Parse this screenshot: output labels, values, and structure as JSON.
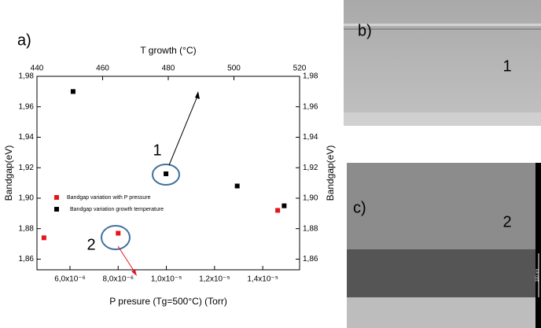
{
  "chart_data": {
    "type": "scatter",
    "panel_label": "a)",
    "x_label": "P presure (Tg=500°C) (Torr)",
    "x2_label": "T growth (°C)",
    "y_label": "Bandgap(eV)",
    "y2_label": "Bandgap(eV)",
    "xlim": [
      4.63e-06,
      1.553e-05
    ],
    "xticks": [
      {
        "value": 6e-06,
        "label": "6,0x10⁻⁶"
      },
      {
        "value": 8e-06,
        "label": "8,0x10⁻⁶"
      },
      {
        "value": 1e-05,
        "label": "1,0x10⁻⁵"
      },
      {
        "value": 1.2e-05,
        "label": "1,2x10⁻⁵"
      },
      {
        "value": 1.4e-05,
        "label": "1,4x10⁻⁵"
      }
    ],
    "x2lim": [
      440,
      520
    ],
    "x2ticks": [
      440,
      460,
      480,
      500,
      520
    ],
    "ylim": [
      1.853,
      1.98
    ],
    "yticks": [
      {
        "value": 1.86,
        "label": "1,86"
      },
      {
        "value": 1.88,
        "label": "1,88"
      },
      {
        "value": 1.9,
        "label": "1,90"
      },
      {
        "value": 1.92,
        "label": "1,92"
      },
      {
        "value": 1.94,
        "label": "1,94"
      },
      {
        "value": 1.96,
        "label": "1,96"
      },
      {
        "value": 1.98,
        "label": "1,98"
      }
    ],
    "series": [
      {
        "name": "Bandgap variation with P pressure",
        "color": "#e8141b",
        "x": [
          4.92e-06,
          8e-06,
          1.462e-05
        ],
        "values": [
          1.874,
          1.877,
          1.892
        ]
      },
      {
        "name": "Bandgap variation growth temperature",
        "color": "#000000",
        "axis": "x2",
        "x": [
          451,
          479.3,
          501,
          515.3
        ],
        "values": [
          1.97,
          1.916,
          1.908,
          1.895
        ]
      }
    ],
    "annotations": [
      {
        "text": "1"
      },
      {
        "text": "2"
      }
    ]
  },
  "panels": [
    {
      "label": "b)",
      "marker": "1"
    },
    {
      "label": "c)",
      "marker": "2",
      "scale_bar": "100 nm"
    }
  ]
}
